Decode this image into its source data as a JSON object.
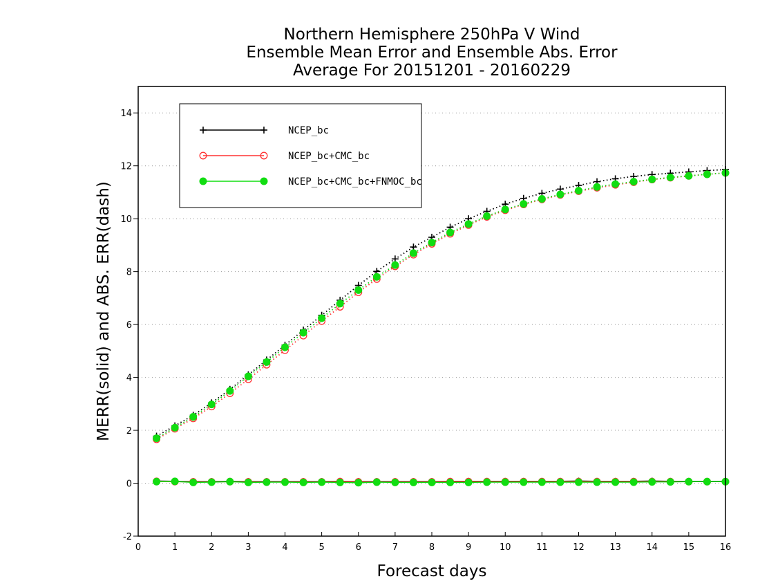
{
  "chart_data": {
    "type": "line",
    "title": [
      "Northern Hemisphere 250hPa V Wind",
      "Ensemble Mean Error and Ensemble Abs. Error",
      "Average For 20151201 - 20160229"
    ],
    "xlabel": "Forecast days",
    "ylabel": "MERR(solid) and ABS. ERR(dash)",
    "xlim": [
      0,
      16
    ],
    "ylim": [
      -2,
      15
    ],
    "xticks": [
      "0",
      "1",
      "2",
      "3",
      "4",
      "5",
      "6",
      "7",
      "8",
      "9",
      "10",
      "11",
      "12",
      "13",
      "14",
      "15",
      "16"
    ],
    "yticks": [
      "-2",
      "0",
      "2",
      "4",
      "6",
      "8",
      "10",
      "12",
      "14"
    ],
    "grid": "horizontal dotted",
    "legend_position": "top-left",
    "x": [
      0.5,
      1,
      1.5,
      2,
      2.5,
      3,
      3.5,
      4,
      4.5,
      5,
      5.5,
      6,
      6.5,
      7,
      7.5,
      8,
      8.5,
      9,
      9.5,
      10,
      10.5,
      11,
      11.5,
      12,
      12.5,
      13,
      13.5,
      14,
      14.5,
      15,
      15.5,
      16
    ],
    "series": [
      {
        "name": "NCEP_bc",
        "color": "#000000",
        "marker": "plus",
        "abs_error": [
          1.78,
          2.17,
          2.57,
          3.04,
          3.55,
          4.1,
          4.66,
          5.22,
          5.79,
          6.35,
          6.92,
          7.48,
          8.01,
          8.48,
          8.93,
          9.3,
          9.68,
          10.0,
          10.28,
          10.55,
          10.77,
          10.96,
          11.12,
          11.26,
          11.4,
          11.51,
          11.6,
          11.67,
          11.72,
          11.77,
          11.82,
          11.86
        ],
        "mean_error": [
          0.08,
          0.07,
          0.06,
          0.06,
          0.07,
          0.06,
          0.06,
          0.06,
          0.06,
          0.06,
          0.07,
          0.06,
          0.06,
          0.06,
          0.06,
          0.06,
          0.07,
          0.07,
          0.07,
          0.07,
          0.07,
          0.07,
          0.07,
          0.08,
          0.07,
          0.07,
          0.07,
          0.08,
          0.07,
          0.07,
          0.07,
          0.07
        ]
      },
      {
        "name": "NCEP_bc+CMC_bc",
        "color": "#ff3333",
        "marker": "open-circle",
        "abs_error": [
          1.66,
          2.06,
          2.45,
          2.9,
          3.4,
          3.93,
          4.48,
          5.03,
          5.58,
          6.13,
          6.67,
          7.22,
          7.72,
          8.2,
          8.64,
          9.05,
          9.43,
          9.76,
          10.07,
          10.32,
          10.54,
          10.73,
          10.9,
          11.04,
          11.17,
          11.28,
          11.38,
          11.48,
          11.55,
          11.62,
          11.68,
          11.73
        ],
        "mean_error": [
          0.07,
          0.06,
          0.05,
          0.05,
          0.06,
          0.05,
          0.05,
          0.05,
          0.05,
          0.05,
          0.06,
          0.05,
          0.05,
          0.05,
          0.05,
          0.05,
          0.06,
          0.06,
          0.06,
          0.06,
          0.06,
          0.06,
          0.06,
          0.06,
          0.06,
          0.06,
          0.06,
          0.06,
          0.06,
          0.06,
          0.06,
          0.06
        ]
      },
      {
        "name": "NCEP_bc+CMC_bc+FNMOC_bc",
        "color": "#11dd11",
        "marker": "filled-circle",
        "abs_error": [
          1.7,
          2.1,
          2.51,
          2.98,
          3.49,
          4.04,
          4.58,
          5.14,
          5.69,
          6.24,
          6.79,
          7.3,
          7.8,
          8.25,
          8.7,
          9.1,
          9.48,
          9.8,
          10.1,
          10.35,
          10.56,
          10.75,
          10.92,
          11.06,
          11.2,
          11.31,
          11.4,
          11.49,
          11.56,
          11.62,
          11.68,
          11.73
        ],
        "mean_error": [
          0.06,
          0.07,
          0.03,
          0.04,
          0.06,
          0.03,
          0.04,
          0.04,
          0.03,
          0.04,
          0.03,
          0.02,
          0.04,
          0.03,
          0.03,
          0.03,
          0.03,
          0.03,
          0.04,
          0.04,
          0.04,
          0.04,
          0.04,
          0.04,
          0.04,
          0.04,
          0.04,
          0.05,
          0.05,
          0.06,
          0.06,
          0.06
        ]
      }
    ]
  }
}
